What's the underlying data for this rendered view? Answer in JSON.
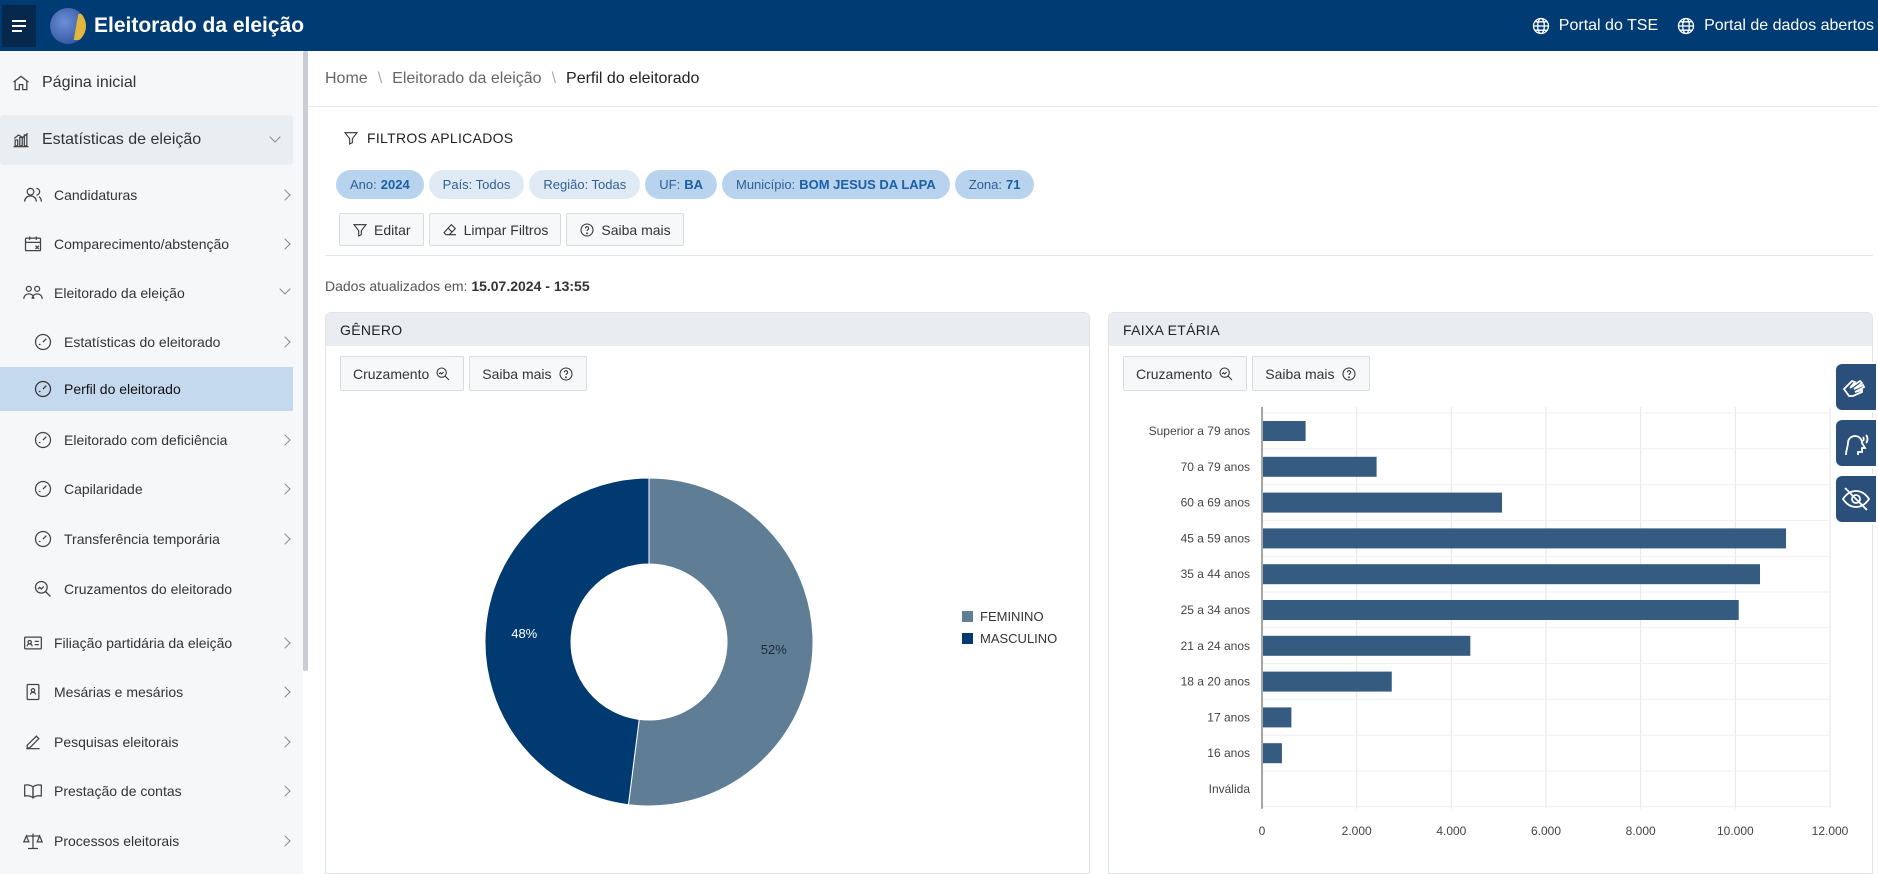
{
  "app": {
    "title": "Eleitorado da eleição"
  },
  "top_links": [
    {
      "label": "Portal do TSE",
      "icon": "globe-icon"
    },
    {
      "label": "Portal de dados abertos",
      "icon": "globe-icon"
    }
  ],
  "sidebar": {
    "items": [
      {
        "label": "Página inicial",
        "icon": "home-icon"
      },
      {
        "label": "Estatísticas de eleição",
        "icon": "chart-icon"
      },
      {
        "label": "Candidaturas",
        "icon": "users-icon"
      },
      {
        "label": "Comparecimento/abstenção",
        "icon": "calendar-x-icon"
      },
      {
        "label": "Eleitorado da eleição",
        "icon": "people-icon"
      },
      {
        "label": "Estatísticas do eleitorado",
        "icon": "gauge-icon"
      },
      {
        "label": "Perfil do eleitorado",
        "icon": "gauge-icon"
      },
      {
        "label": "Eleitorado com deficiência",
        "icon": "gauge-icon"
      },
      {
        "label": "Capilaridade",
        "icon": "gauge-icon"
      },
      {
        "label": "Transferência temporária",
        "icon": "gauge-icon"
      },
      {
        "label": "Cruzamentos do eleitorado",
        "icon": "search-chart-icon"
      },
      {
        "label": "Filiação partidária da eleição",
        "icon": "id-card-icon"
      },
      {
        "label": "Mesárias e mesários",
        "icon": "badge-icon"
      },
      {
        "label": "Pesquisas eleitorais",
        "icon": "pencil-icon"
      },
      {
        "label": "Prestação de contas",
        "icon": "book-icon"
      },
      {
        "label": "Processos eleitorais",
        "icon": "scale-icon"
      }
    ]
  },
  "breadcrumb": {
    "home": "Home",
    "section": "Eleitorado da eleição",
    "current": "Perfil do eleitorado"
  },
  "filters": {
    "title": "FILTROS APLICADOS",
    "chips": [
      {
        "key": "Ano:",
        "value": "2024"
      },
      {
        "key": "País: Todos",
        "value": ""
      },
      {
        "key": "Região: Todas",
        "value": ""
      },
      {
        "key": "UF:",
        "value": "BA"
      },
      {
        "key": "Município:",
        "value": "BOM JESUS DA LAPA"
      },
      {
        "key": "Zona:",
        "value": "71"
      }
    ],
    "actions": {
      "edit": "Editar",
      "clear": "Limpar Filtros",
      "more": "Saiba mais"
    }
  },
  "updated": {
    "label": "Dados atualizados em:",
    "value": "15.07.2024 - 13:55"
  },
  "panels": {
    "gender": {
      "title": "GÊNERO",
      "cross_btn": "Cruzamento",
      "more_btn": "Saiba mais"
    },
    "age": {
      "title": "FAIXA ETÁRIA",
      "cross_btn": "Cruzamento",
      "more_btn": "Saiba mais"
    }
  },
  "chart_data": [
    {
      "type": "pie",
      "title": "",
      "labels": [
        "FEMININO",
        "MASCULINO"
      ],
      "values": [
        52,
        48
      ],
      "unit": "%",
      "colors": [
        "#5f7e95",
        "#003a70"
      ],
      "legend": "right"
    },
    {
      "type": "bar",
      "orientation": "horizontal",
      "title": "",
      "categories": [
        "Superior a 79 anos",
        "70 a 79 anos",
        "60 a 69 anos",
        "45 a 59 anos",
        "35 a 44 anos",
        "25 a 34 anos",
        "21 a 24 anos",
        "18 a 20 anos",
        "17 anos",
        "16 anos",
        "Inválida"
      ],
      "values": [
        900,
        2400,
        5050,
        11050,
        10500,
        10050,
        4380,
        2720,
        600,
        400,
        0
      ],
      "xlim": [
        0,
        12000
      ],
      "ticks": [
        "0",
        "2.000",
        "4.000",
        "6.000",
        "8.000",
        "10.000",
        "12.000"
      ],
      "color": "#355b80",
      "grid": true
    }
  ],
  "colors": {
    "topbar": "#003b73",
    "active_item": "#c5d9ee",
    "accent": "#1b5fa7"
  }
}
